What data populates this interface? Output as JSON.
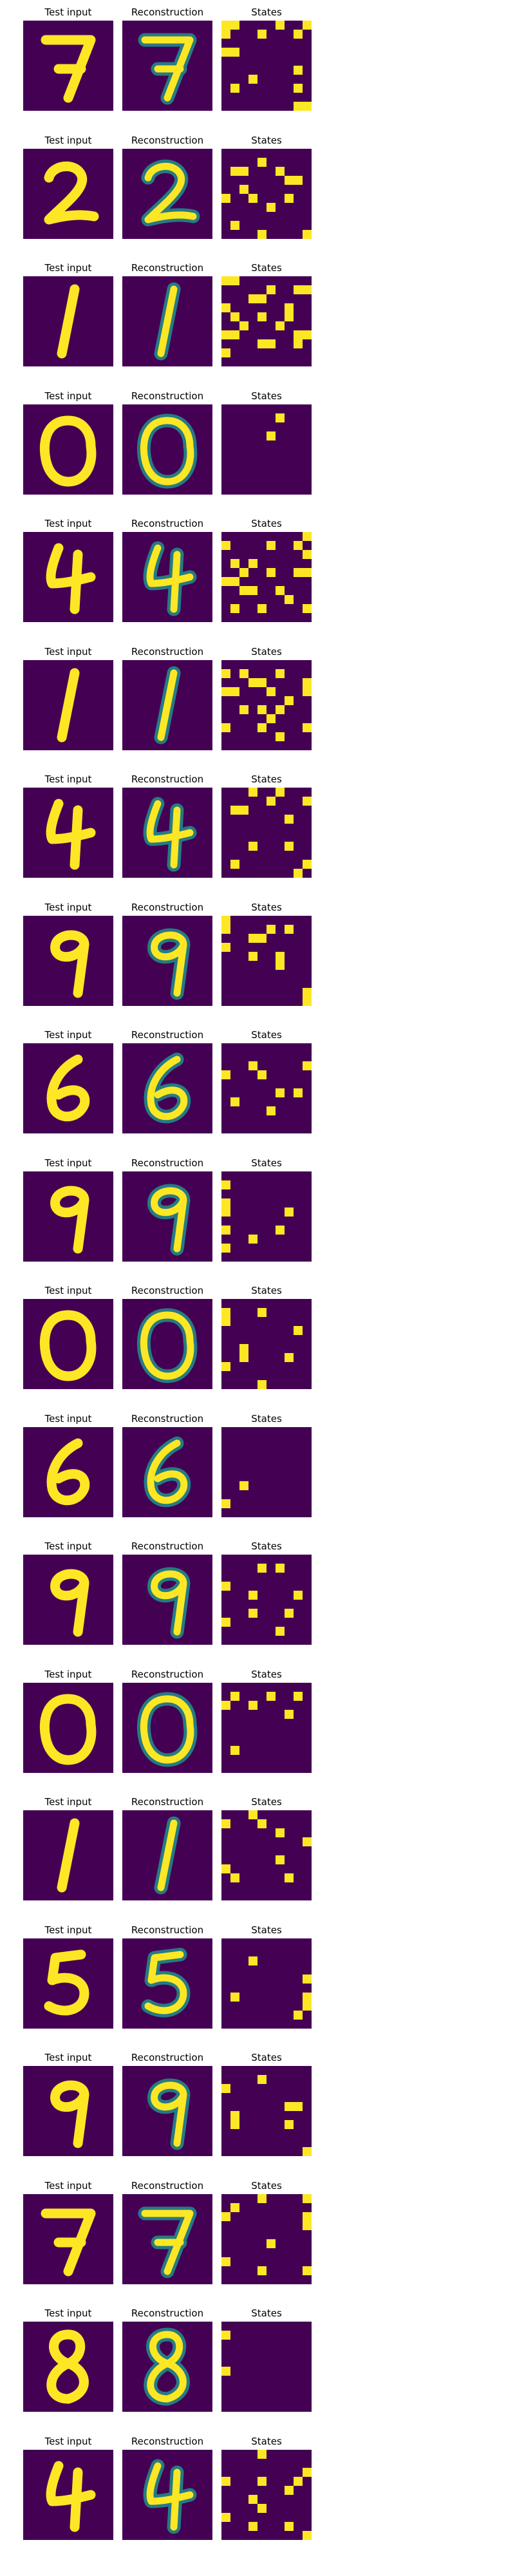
{
  "labels": {
    "input": "Test input",
    "reconstruction": "Reconstruction",
    "states": "States"
  },
  "colors": {
    "background": "#440154",
    "foreground": "#fde725",
    "mid": "#21918c"
  },
  "rows": [
    {
      "digit": "7",
      "states": [
        "1100001001",
        "1000100010",
        "0000000000",
        "1100000000",
        "0000000000",
        "0000000010",
        "0001000000",
        "0100000010",
        "0000000000",
        "0000000011"
      ]
    },
    {
      "digit": "2",
      "states": [
        "0000000000",
        "0000100000",
        "0110001000",
        "0000000110",
        "0010000000",
        "1001000100",
        "0000010000",
        "0000000000",
        "0100000000",
        "0000100001"
      ]
    },
    {
      "digit": "1",
      "states": [
        "1100000000",
        "0000010011",
        "0001100000",
        "1000000100",
        "0100100100",
        "0010001000",
        "1100000011",
        "0000110010",
        "1000000000",
        "0000000000"
      ]
    },
    {
      "digit": "0",
      "states": [
        "0000000000",
        "0000001000",
        "0000000000",
        "0000010000",
        "0000000000",
        "0000000000",
        "0000000000",
        "0000000000",
        "0000000000",
        "0000000000"
      ]
    },
    {
      "digit": "4",
      "states": [
        "0000000001",
        "1000010010",
        "0000000001",
        "0101000000",
        "0010010011",
        "1100000000",
        "0011001000",
        "0000000100",
        "0100100001",
        "0000000000"
      ]
    },
    {
      "digit": "1",
      "states": [
        "0000000000",
        "1010001000",
        "0001100001",
        "1100010001",
        "0000000100",
        "0010101000",
        "0000010000",
        "1000100001",
        "0000001000",
        "0000000000"
      ]
    },
    {
      "digit": "4",
      "states": [
        "0001001000",
        "0000010001",
        "0110000000",
        "0000000100",
        "0000000000",
        "0000000000",
        "0001000100",
        "0000000000",
        "0100000001",
        "0000000010"
      ]
    },
    {
      "digit": "9",
      "states": [
        "1000000000",
        "1000010100",
        "0001100000",
        "1000000000",
        "0001001000",
        "0000001000",
        "0000000000",
        "0000000000",
        "0000000001",
        "0000000001"
      ]
    },
    {
      "digit": "6",
      "states": [
        "0000000000",
        "0000000000",
        "0001000001",
        "1000100000",
        "0000000000",
        "0000001010",
        "0100000000",
        "0000010000",
        "0000000000",
        "0000000000"
      ]
    },
    {
      "digit": "9",
      "states": [
        "0000000000",
        "1000000000",
        "0000000000",
        "1000000000",
        "1000000100",
        "0000000000",
        "1000001000",
        "0001000000",
        "1000000000",
        "0000000000"
      ]
    },
    {
      "digit": "0",
      "states": [
        "0000000000",
        "1000100000",
        "1000000000",
        "0000000010",
        "0000000000",
        "0010000000",
        "0010000100",
        "1000000000",
        "0000000000",
        "0000100000"
      ]
    },
    {
      "digit": "6",
      "states": [
        "0000000000",
        "0000000000",
        "0000000000",
        "0000000000",
        "0000000000",
        "0000000000",
        "0010000000",
        "0000000000",
        "1000000000",
        "0000000000"
      ]
    },
    {
      "digit": "9",
      "states": [
        "0000000000",
        "0000101000",
        "0000000000",
        "1000000000",
        "0001000010",
        "0000000000",
        "0001000100",
        "1000000000",
        "0000001000",
        "0000000000"
      ]
    },
    {
      "digit": "0",
      "states": [
        "0000000000",
        "0100010010",
        "1001000000",
        "0000000100",
        "0000000000",
        "0000000000",
        "0000000000",
        "0100000000",
        "0000000000",
        "0000000000"
      ]
    },
    {
      "digit": "1",
      "states": [
        "0001000000",
        "1000100000",
        "0000001000",
        "0000000001",
        "0000000000",
        "0000001000",
        "1000000000",
        "0100000100",
        "0000000000",
        "0000000000"
      ]
    },
    {
      "digit": "5",
      "states": [
        "0000000000",
        "0000000000",
        "0001000000",
        "0000000000",
        "0000000001",
        "0000000000",
        "0100000001",
        "0000000001",
        "0000000010",
        "0000000000"
      ]
    },
    {
      "digit": "9",
      "states": [
        "0000000000",
        "0000100000",
        "1000000000",
        "0000000000",
        "0000000110",
        "0100000000",
        "0100000100",
        "0000000000",
        "0000000000",
        "0000000001"
      ]
    },
    {
      "digit": "7",
      "states": [
        "0000100001",
        "0100000000",
        "1000000001",
        "0000000001",
        "0000000000",
        "0000010000",
        "0000000000",
        "1000000000",
        "0000100001",
        "0000000000"
      ]
    },
    {
      "digit": "8",
      "states": [
        "0000000000",
        "1000000000",
        "0000000000",
        "0000000000",
        "0000000000",
        "1000000000",
        "0000000000",
        "0000000000",
        "0000000000",
        "0000000000"
      ]
    },
    {
      "digit": "4",
      "states": [
        "0000100000",
        "0000000000",
        "0000000001",
        "1000100010",
        "0000000100",
        "0001000000",
        "0000100000",
        "1000000000",
        "0001000100",
        "0000000001"
      ]
    }
  ]
}
